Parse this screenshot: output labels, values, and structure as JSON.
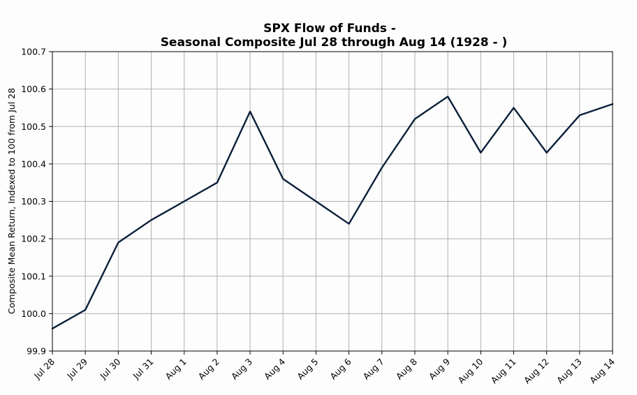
{
  "chart_data": {
    "type": "line",
    "title": "SPX Flow of Funds -",
    "subtitle": "Seasonal Composite Jul 28 through Aug 14 (1928 - )",
    "xlabel": "",
    "ylabel": "Composite Mean Return, Indexed to 100 from Jul 28",
    "categories": [
      "Jul 28",
      "Jul 29",
      "Jul 30",
      "Jul 31",
      "Aug 1",
      "Aug 2",
      "Aug 3",
      "Aug 4",
      "Aug 5",
      "Aug 6",
      "Aug 7",
      "Aug 8",
      "Aug 9",
      "Aug 10",
      "Aug 11",
      "Aug 12",
      "Aug 13",
      "Aug 14"
    ],
    "series": [
      {
        "values": [
          99.96,
          100.01,
          100.19,
          100.25,
          100.3,
          100.35,
          100.54,
          100.36,
          100.3,
          100.24,
          100.39,
          100.52,
          100.58,
          100.43,
          100.55,
          100.43,
          100.53,
          100.56
        ],
        "color": "#0b1f3a"
      }
    ],
    "ylim": [
      99.9,
      100.7
    ],
    "yticks": [
      "99.9",
      "100.0",
      "100.1",
      "100.2",
      "100.3",
      "100.4",
      "100.5",
      "100.6",
      "100.7"
    ],
    "grid": true,
    "legend": "none"
  }
}
